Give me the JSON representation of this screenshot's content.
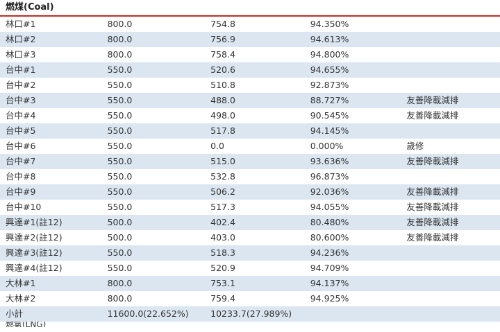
{
  "section": {
    "title": "燃煤(Coal)"
  },
  "accent_color": "#c62828",
  "row_even_color": "#dbe6f1",
  "rows": [
    {
      "unit": "林口#1",
      "capacity": "800.0",
      "net": "754.8",
      "ratio": "94.350%",
      "note": ""
    },
    {
      "unit": "林口#2",
      "capacity": "800.0",
      "net": "756.9",
      "ratio": "94.613%",
      "note": ""
    },
    {
      "unit": "林口#3",
      "capacity": "800.0",
      "net": "758.4",
      "ratio": "94.800%",
      "note": ""
    },
    {
      "unit": "台中#1",
      "capacity": "550.0",
      "net": "520.6",
      "ratio": "94.655%",
      "note": ""
    },
    {
      "unit": "台中#2",
      "capacity": "550.0",
      "net": "510.8",
      "ratio": "92.873%",
      "note": ""
    },
    {
      "unit": "台中#3",
      "capacity": "550.0",
      "net": "488.0",
      "ratio": "88.727%",
      "note": "友善降載減排"
    },
    {
      "unit": "台中#4",
      "capacity": "550.0",
      "net": "498.0",
      "ratio": "90.545%",
      "note": "友善降載減排"
    },
    {
      "unit": "台中#5",
      "capacity": "550.0",
      "net": "517.8",
      "ratio": "94.145%",
      "note": ""
    },
    {
      "unit": "台中#6",
      "capacity": "550.0",
      "net": "0.0",
      "ratio": "0.000%",
      "note": "歲修"
    },
    {
      "unit": "台中#7",
      "capacity": "550.0",
      "net": "515.0",
      "ratio": "93.636%",
      "note": "友善降載減排"
    },
    {
      "unit": "台中#8",
      "capacity": "550.0",
      "net": "532.8",
      "ratio": "96.873%",
      "note": ""
    },
    {
      "unit": "台中#9",
      "capacity": "550.0",
      "net": "506.2",
      "ratio": "92.036%",
      "note": "友善降載減排"
    },
    {
      "unit": "台中#10",
      "capacity": "550.0",
      "net": "517.3",
      "ratio": "94.055%",
      "note": "友善降載減排"
    },
    {
      "unit": "興達#1(註12)",
      "capacity": "500.0",
      "net": "402.4",
      "ratio": "80.480%",
      "note": "友善降載減排"
    },
    {
      "unit": "興達#2(註12)",
      "capacity": "500.0",
      "net": "403.0",
      "ratio": "80.600%",
      "note": "友善降載減排"
    },
    {
      "unit": "興達#3(註12)",
      "capacity": "550.0",
      "net": "518.3",
      "ratio": "94.236%",
      "note": ""
    },
    {
      "unit": "興達#4(註12)",
      "capacity": "550.0",
      "net": "520.9",
      "ratio": "94.709%",
      "note": ""
    },
    {
      "unit": "大林#1",
      "capacity": "800.0",
      "net": "753.1",
      "ratio": "94.137%",
      "note": ""
    },
    {
      "unit": "大林#2",
      "capacity": "800.0",
      "net": "759.4",
      "ratio": "94.925%",
      "note": ""
    },
    {
      "unit": "小計",
      "capacity": "11600.0(22.652%)",
      "net": "10233.7(27.989%)",
      "ratio": "",
      "note": ""
    }
  ],
  "next_section": {
    "title": "燃氣(LNG)"
  }
}
